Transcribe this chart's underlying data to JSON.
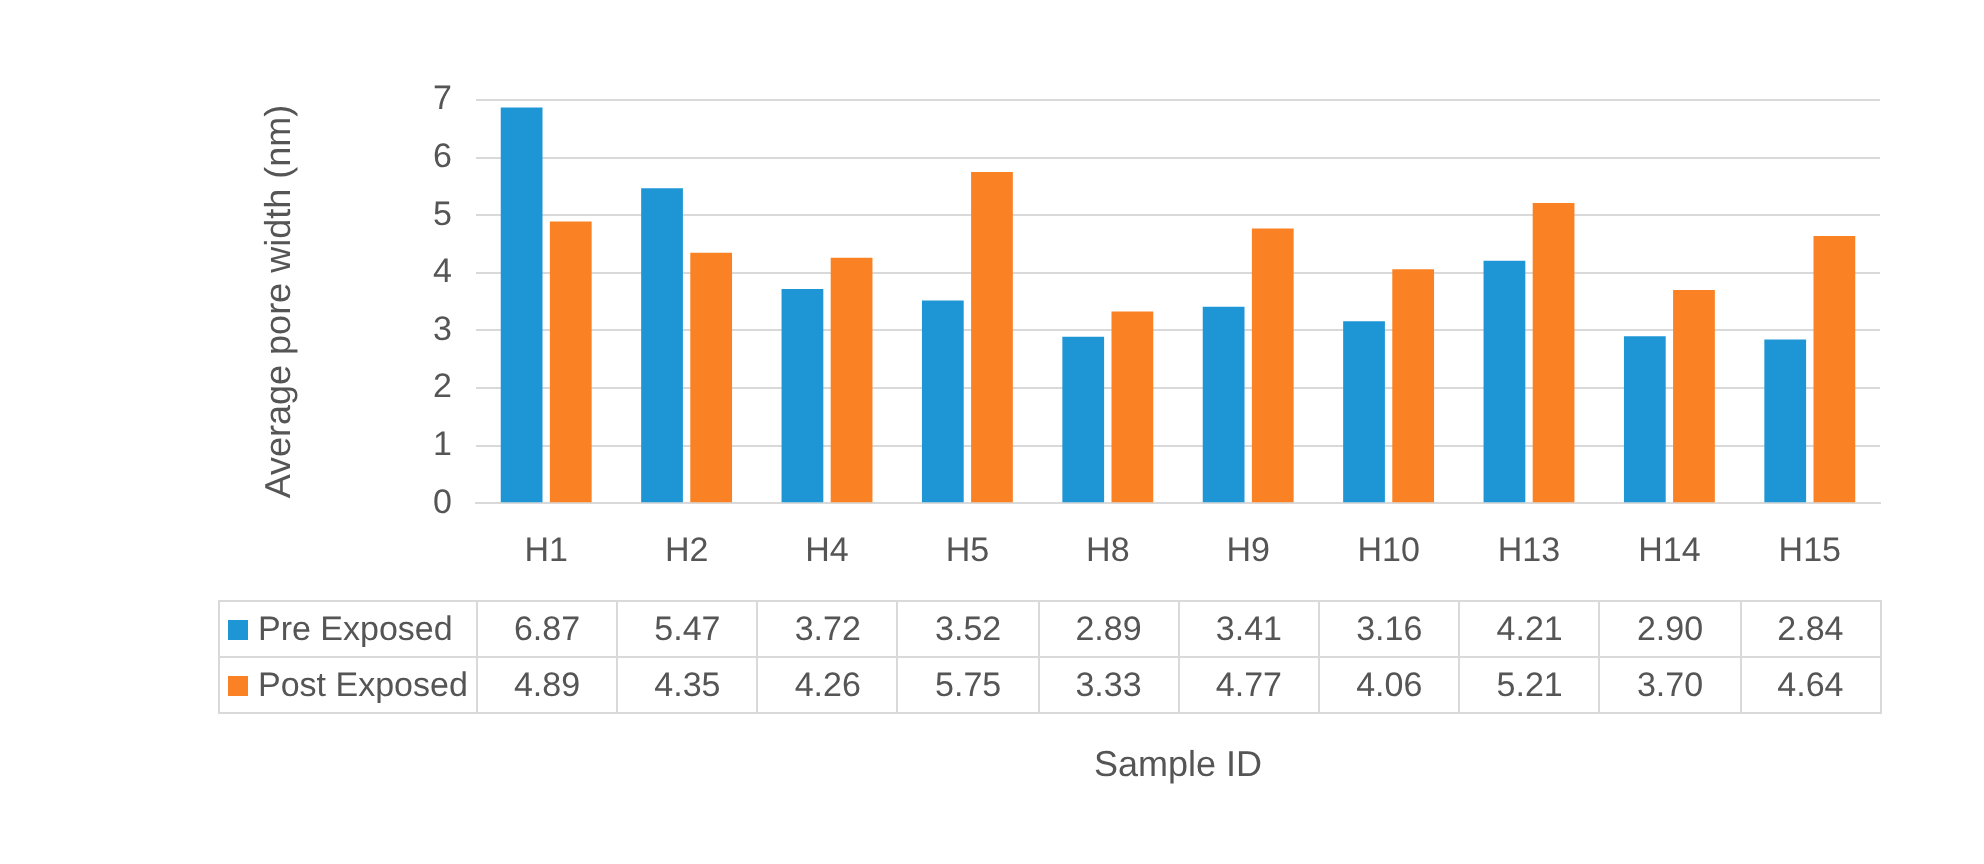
{
  "chart_data": {
    "type": "bar",
    "xlabel": "Sample ID",
    "ylabel": "Average pore width (nm)",
    "categories": [
      "H1",
      "H2",
      "H4",
      "H5",
      "H8",
      "H9",
      "H10",
      "H13",
      "H14",
      "H15"
    ],
    "series": [
      {
        "name": "Pre Exposed",
        "color": "#1e96d6",
        "values": [
          6.87,
          5.47,
          3.72,
          3.52,
          2.89,
          3.41,
          3.16,
          4.21,
          2.9,
          2.84
        ],
        "value_labels": [
          "6.87",
          "5.47",
          "3.72",
          "3.52",
          "2.89",
          "3.41",
          "3.16",
          "4.21",
          "2.90",
          "2.84"
        ]
      },
      {
        "name": "Post Exposed",
        "color": "#fb8224",
        "values": [
          4.89,
          4.35,
          4.26,
          5.75,
          3.33,
          4.77,
          4.06,
          5.21,
          3.7,
          4.64
        ],
        "value_labels": [
          "4.89",
          "4.35",
          "4.26",
          "5.75",
          "3.33",
          "4.77",
          "4.06",
          "5.21",
          "3.70",
          "4.64"
        ]
      }
    ],
    "ylim": [
      0,
      7
    ],
    "yticks": [
      0,
      1,
      2,
      3,
      4,
      5,
      6,
      7
    ],
    "grid": "y",
    "legend": "bottom",
    "data_labels": true
  }
}
